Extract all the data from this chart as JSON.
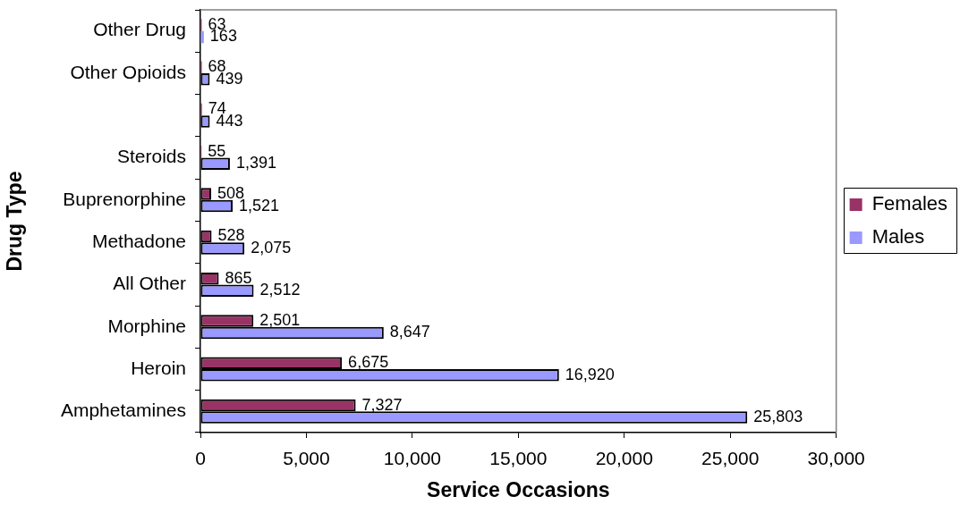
{
  "chart_data": {
    "type": "bar",
    "orientation": "horizontal",
    "xlabel": "Service Occasions",
    "ylabel": "Drug Type",
    "categories": [
      "Other Drug",
      "Other Opioids",
      null,
      "Steroids",
      "Buprenorphine",
      "Methadone",
      "All Other",
      "Morphine",
      "Heroin",
      "Amphetamines"
    ],
    "series": [
      {
        "name": "Females",
        "color": "#993366",
        "values": [
          63,
          68,
          74,
          55,
          508,
          528,
          865,
          2501,
          6675,
          7327
        ],
        "value_labels": [
          "63",
          "68",
          "74",
          "55",
          "508",
          "528",
          "865",
          "2,501",
          "6,675",
          "7,327"
        ]
      },
      {
        "name": "Males",
        "color": "#9999ff",
        "values": [
          163,
          439,
          443,
          1391,
          1521,
          2075,
          2512,
          8647,
          16920,
          25803
        ],
        "value_labels": [
          "163",
          "439",
          "443",
          "1,391",
          "1,521",
          "2,075",
          "2,512",
          "8,647",
          "16,920",
          "25,803"
        ]
      }
    ],
    "xlim": [
      0,
      30000
    ],
    "xticks": [
      0,
      {
        "value": 5000,
        "label": "5,000"
      },
      {
        "value": 10000,
        "label": "10,000"
      },
      {
        "value": 15000,
        "label": "15,000"
      },
      {
        "value": 20000,
        "label": "20,000"
      },
      {
        "value": 25000,
        "label": "25,000"
      },
      {
        "value": 30000,
        "label": "30,000"
      }
    ],
    "grid": false,
    "legend": "right"
  }
}
